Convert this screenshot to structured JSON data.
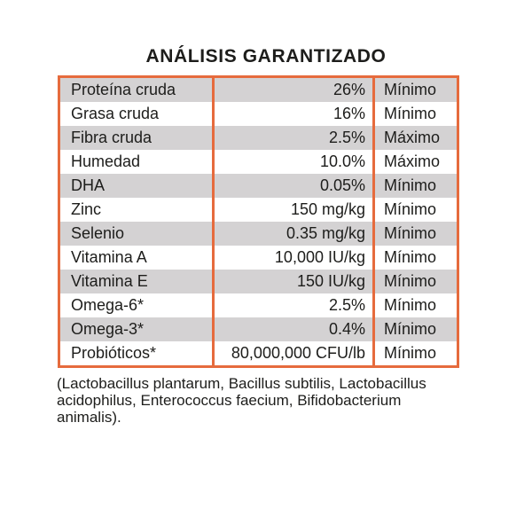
{
  "title": "ANÁLISIS GARANTIZADO",
  "colors": {
    "accent": "#E66B3D",
    "stripe": "#D4D2D3",
    "text": "#1D1D1B",
    "background": "#FFFFFF"
  },
  "table": {
    "rows": [
      {
        "nutrient": "Proteína cruda",
        "value": "26%",
        "basis": "Mínimo"
      },
      {
        "nutrient": "Grasa cruda",
        "value": "16%",
        "basis": "Mínimo"
      },
      {
        "nutrient": "Fibra cruda",
        "value": "2.5%",
        "basis": "Máximo"
      },
      {
        "nutrient": "Humedad",
        "value": "10.0%",
        "basis": "Máximo"
      },
      {
        "nutrient": "DHA",
        "value": "0.05%",
        "basis": "Mínimo"
      },
      {
        "nutrient": "Zinc",
        "value": "150 mg/kg",
        "basis": "Mínimo"
      },
      {
        "nutrient": "Selenio",
        "value": "0.35 mg/kg",
        "basis": "Mínimo"
      },
      {
        "nutrient": "Vitamina A",
        "value": "10,000 IU/kg",
        "basis": "Mínimo"
      },
      {
        "nutrient": "Vitamina E",
        "value": "150 IU/kg",
        "basis": "Mínimo"
      },
      {
        "nutrient": "Omega-6*",
        "value": "2.5%",
        "basis": "Mínimo"
      },
      {
        "nutrient": "Omega-3*",
        "value": "0.4%",
        "basis": "Mínimo"
      },
      {
        "nutrient": "Probióticos*",
        "value": "80,000,000 CFU/lb",
        "basis": "Mínimo"
      }
    ]
  },
  "footnote": "(Lactobacillus plantarum, Bacillus subtilis, Lactobacillus acidophilus, Enterococcus faecium, Bifidobacterium animalis)."
}
